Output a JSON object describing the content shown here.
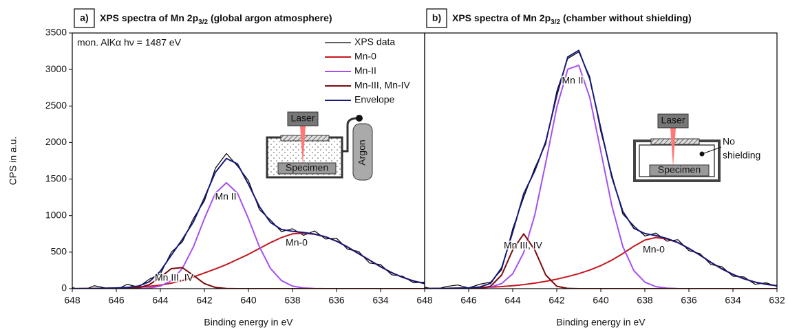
{
  "chart_data": [
    {
      "type": "line",
      "panel_label": "a)",
      "title": [
        "XPS spectra of Mn 2p",
        "3/2",
        " (global argon atmosphere)"
      ],
      "y_label": "CPS in a.u.",
      "x_label": "Binding energy in eV",
      "xlim": [
        648,
        632
      ],
      "xticks": [
        648,
        646,
        644,
        642,
        640,
        638,
        636,
        634
      ],
      "ylim": [
        0,
        3500
      ],
      "yticks": [
        0,
        500,
        1000,
        1500,
        2000,
        2500,
        3000,
        3500
      ],
      "legend": "upper right",
      "annotations": [
        "mon. AlKα hν = 1487 eV",
        "Mn II",
        "Mn-0",
        "Mn III, IV"
      ],
      "inset_labels": [
        "Laser",
        "Specimen",
        "Argon"
      ],
      "x": [
        648,
        647.5,
        647,
        646.5,
        646,
        645.5,
        645,
        644.5,
        644,
        643.5,
        643,
        642.5,
        642,
        641.5,
        641,
        640.5,
        640,
        639.5,
        639,
        638.5,
        638,
        637.5,
        637,
        636.5,
        636,
        635.5,
        635,
        634.5,
        634,
        633.5,
        633,
        632.5,
        632
      ],
      "series": [
        {
          "name": "XPS data",
          "color": "#000000",
          "width": 1.2,
          "values": [
            15,
            -20,
            40,
            10,
            -15,
            60,
            20,
            130,
            200,
            500,
            640,
            960,
            1200,
            1650,
            1850,
            1680,
            1480,
            1080,
            940,
            780,
            820,
            730,
            790,
            680,
            690,
            540,
            510,
            350,
            330,
            190,
            170,
            80,
            90
          ]
        },
        {
          "name": "Mn-0",
          "color": "#c4161c",
          "width": 2,
          "values": [
            0,
            2,
            4,
            6,
            10,
            15,
            22,
            32,
            48,
            75,
            110,
            160,
            215,
            270,
            330,
            400,
            470,
            550,
            630,
            700,
            750,
            760,
            745,
            710,
            650,
            570,
            480,
            390,
            300,
            220,
            155,
            105,
            70
          ]
        },
        {
          "name": "Mn-II",
          "color": "#a64ff0",
          "width": 2,
          "values": [
            0,
            0,
            0,
            0,
            0,
            0,
            2,
            9,
            35,
            110,
            277,
            572,
            959,
            1308,
            1450,
            1308,
            959,
            572,
            277,
            110,
            35,
            9,
            2,
            0,
            0,
            0,
            0,
            0,
            0,
            0,
            0,
            0,
            0
          ]
        },
        {
          "name": "Mn-III, Mn-IV",
          "color": "#7a0a0a",
          "width": 2,
          "values": [
            0,
            0,
            0,
            0,
            0,
            1,
            11,
            54,
            156,
            274,
            288,
            182,
            69,
            16,
            2,
            0,
            0,
            0,
            0,
            0,
            0,
            0,
            0,
            0,
            0,
            0,
            0,
            0,
            0,
            0,
            0,
            0,
            0
          ]
        },
        {
          "name": "Envelope",
          "color": "#16187a",
          "width": 2,
          "values": [
            0,
            2,
            4,
            6,
            10,
            16,
            35,
            95,
            239,
            459,
            675,
            914,
            1243,
            1594,
            1782,
            1708,
            1429,
            1122,
            907,
            810,
            785,
            769,
            747,
            710,
            650,
            570,
            480,
            390,
            300,
            220,
            155,
            105,
            70
          ]
        }
      ]
    },
    {
      "type": "line",
      "panel_label": "b)",
      "title": [
        "XPS spectra of Mn 2p",
        "3/2",
        " (chamber without shielding)"
      ],
      "x_label": "Binding energy in eV",
      "xlim": [
        648,
        632
      ],
      "xticks": [
        648,
        646,
        644,
        642,
        640,
        638,
        636,
        634,
        632
      ],
      "ylim": [
        0,
        3500
      ],
      "annotations": [
        "Mn II",
        "Mn-0",
        "Mn III, IV"
      ],
      "inset_labels": [
        "Laser",
        "Specimen",
        "No",
        "shielding"
      ],
      "x": [
        648,
        647.5,
        647,
        646.5,
        646,
        645.5,
        645,
        644.5,
        644,
        643.5,
        643,
        642.5,
        642,
        641.5,
        641,
        640.5,
        640,
        639.5,
        639,
        638.5,
        638,
        637.5,
        637,
        636.5,
        636,
        635.5,
        635,
        634.5,
        634,
        633.5,
        633,
        632.5,
        632
      ],
      "series": [
        {
          "color": "#000000",
          "width": 1.2,
          "values": [
            20,
            -10,
            30,
            50,
            10,
            60,
            90,
            260,
            820,
            1250,
            1650,
            1980,
            2700,
            3150,
            3240,
            2900,
            2150,
            1560,
            1020,
            860,
            720,
            760,
            650,
            670,
            520,
            480,
            330,
            300,
            170,
            160,
            60,
            80,
            30
          ]
        },
        {
          "color": "#c4161c",
          "width": 2,
          "values": [
            2,
            3,
            5,
            7,
            10,
            14,
            20,
            28,
            40,
            55,
            75,
            100,
            130,
            165,
            205,
            255,
            315,
            390,
            480,
            580,
            665,
            700,
            680,
            630,
            550,
            460,
            360,
            270,
            195,
            135,
            90,
            60,
            40
          ]
        },
        {
          "color": "#a64ff0",
          "width": 2,
          "values": [
            0,
            0,
            0,
            0,
            1,
            5,
            21,
            71,
            204,
            494,
            1006,
            1724,
            2482,
            3004,
            3057,
            2615,
            1880,
            1137,
            577,
            247,
            89,
            27,
            7,
            1,
            0,
            0,
            0,
            0,
            0,
            0,
            0,
            0,
            0
          ]
        },
        {
          "color": "#7a0a0a",
          "width": 2,
          "values": [
            0,
            0,
            0,
            0,
            0,
            3,
            33,
            187,
            530,
            750,
            530,
            187,
            33,
            3,
            0,
            0,
            0,
            0,
            0,
            0,
            0,
            0,
            0,
            0,
            0,
            0,
            0,
            0,
            0,
            0,
            0,
            0,
            0
          ]
        },
        {
          "color": "#16187a",
          "width": 2,
          "values": [
            2,
            3,
            5,
            7,
            11,
            22,
            74,
            286,
            774,
            1299,
            1611,
            2011,
            2645,
            3172,
            3262,
            2870,
            2195,
            1527,
            1057,
            827,
            754,
            727,
            687,
            631,
            550,
            460,
            360,
            270,
            195,
            135,
            90,
            60,
            40
          ]
        }
      ]
    }
  ]
}
